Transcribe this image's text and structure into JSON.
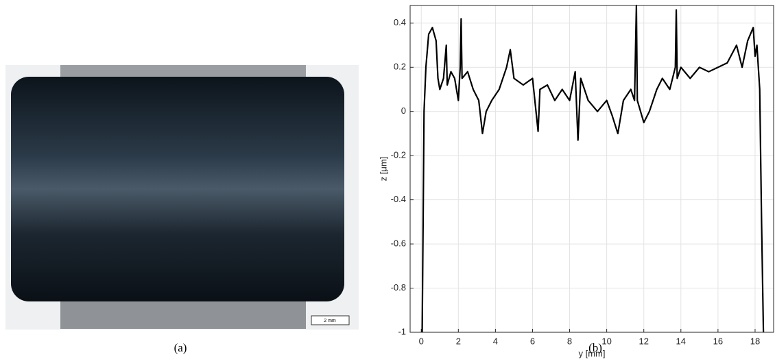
{
  "panels": {
    "a": {
      "caption": "(a)",
      "scale_bar": "2 mm"
    },
    "b": {
      "caption": "(b)"
    }
  },
  "chart_data": {
    "type": "line",
    "x_label": "y [mm]",
    "y_label": "z [μm]",
    "xlim": [
      -0.6,
      19
    ],
    "ylim": [
      -1,
      0.48
    ],
    "xticks": [
      0,
      2,
      4,
      6,
      8,
      10,
      12,
      14,
      16,
      18
    ],
    "yticks": [
      -1,
      -0.8,
      -0.6,
      -0.4,
      -0.2,
      0,
      0.2,
      0.4
    ],
    "grid": true,
    "series": [
      {
        "color": "#000000",
        "x": [
          0.05,
          0.1,
          0.15,
          0.25,
          0.4,
          0.6,
          0.8,
          0.9,
          1.0,
          1.2,
          1.35,
          1.4,
          1.6,
          1.8,
          2.0,
          2.1,
          2.15,
          2.2,
          2.5,
          2.8,
          3.1,
          3.3,
          3.5,
          3.8,
          4.2,
          4.6,
          4.8,
          5.0,
          5.5,
          6.0,
          6.3,
          6.4,
          6.8,
          7.2,
          7.6,
          8.0,
          8.3,
          8.45,
          8.6,
          9.0,
          9.5,
          10.0,
          10.3,
          10.6,
          10.9,
          11.3,
          11.5,
          11.6,
          11.65,
          12.0,
          12.3,
          12.7,
          13.0,
          13.4,
          13.7,
          13.75,
          13.8,
          14.0,
          14.5,
          15.0,
          15.5,
          16.0,
          16.5,
          17.0,
          17.3,
          17.6,
          17.9,
          18.0,
          18.1,
          18.25,
          18.35,
          18.45
        ],
        "values": [
          -1,
          -0.5,
          0,
          0.2,
          0.35,
          0.38,
          0.32,
          0.15,
          0.1,
          0.15,
          0.3,
          0.12,
          0.18,
          0.15,
          0.05,
          0.2,
          0.42,
          0.15,
          0.18,
          0.1,
          0.05,
          -0.1,
          0.0,
          0.05,
          0.1,
          0.2,
          0.28,
          0.15,
          0.12,
          0.15,
          -0.09,
          0.1,
          0.12,
          0.05,
          0.1,
          0.05,
          0.18,
          -0.13,
          0.15,
          0.05,
          0.0,
          0.05,
          -0.02,
          -0.1,
          0.05,
          0.1,
          0.05,
          0.48,
          0.05,
          -0.05,
          0.0,
          0.1,
          0.15,
          0.1,
          0.2,
          0.46,
          0.15,
          0.2,
          0.15,
          0.2,
          0.18,
          0.2,
          0.22,
          0.3,
          0.2,
          0.32,
          0.38,
          0.25,
          0.3,
          0.1,
          -0.5,
          -1
        ]
      }
    ]
  }
}
